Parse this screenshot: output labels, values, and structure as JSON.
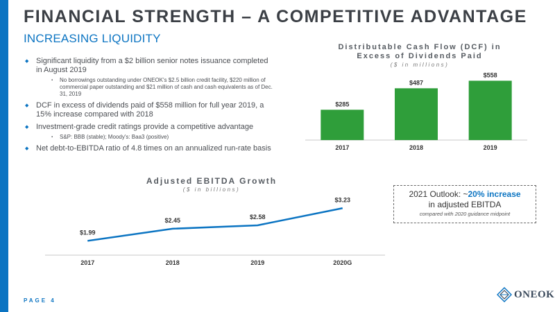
{
  "header": {
    "title": "FINANCIAL STRENGTH – A COMPETITIVE ADVANTAGE",
    "subtitle": "INCREASING LIQUIDITY"
  },
  "bullets": [
    {
      "text": "Significant liquidity from a $2 billion senior notes issuance completed in August 2019",
      "subs": [
        "No borrowings outstanding under ONEOK's $2.5 billion credit facility, $220 million of commercial paper outstanding and $21 million of cash and cash equivalents as of Dec. 31, 2019"
      ]
    },
    {
      "text": "DCF in excess of dividends paid of $558 million for full year 2019, a 15% increase compared with 2018",
      "subs": []
    },
    {
      "text": "Investment-grade credit ratings provide a competitive advantage",
      "subs": [
        "S&P: BBB (stable);  Moody's: Baa3 (positive)"
      ]
    },
    {
      "text": "Net debt-to-EBITDA ratio of 4.8 times on an annualized run-rate basis",
      "subs": []
    }
  ],
  "chart_data": [
    {
      "type": "bar",
      "title_line1": "Distributable Cash Flow (DCF) in",
      "title_line2": "Excess of Dividends Paid",
      "subtitle": "($ in millions)",
      "categories": [
        "2017",
        "2018",
        "2019"
      ],
      "values": [
        285,
        487,
        558
      ],
      "value_labels": [
        "$285",
        "$487",
        "$558"
      ],
      "ylim": [
        0,
        600
      ],
      "colors": [
        "#2f9e3a",
        "#2f9e3a",
        "#2f9e3a"
      ],
      "grid": false
    },
    {
      "type": "line",
      "title": "Adjusted EBITDA Growth",
      "subtitle": "($ in billions)",
      "categories": [
        "2017",
        "2018",
        "2019",
        "2020G"
      ],
      "values": [
        1.99,
        2.45,
        2.58,
        3.23
      ],
      "value_labels": [
        "$1.99",
        "$2.45",
        "$2.58",
        "$3.23"
      ],
      "ylim": [
        1.5,
        3.5
      ],
      "color": "#0b74c2",
      "grid": false
    }
  ],
  "outlook": {
    "prefix": "2021 Outlook: ~",
    "highlight": "20% increase",
    "line2": "in adjusted EBITDA",
    "line3": "compared with 2020 guidance midpoint"
  },
  "footer": {
    "page_label": "PAGE 4",
    "logo_text": "ONEOK",
    "logo_icon": "oneok-diamond-logo-icon"
  },
  "colors": {
    "accent": "#0b74c2",
    "bar": "#2f9e3a",
    "title": "#3b3f45"
  }
}
